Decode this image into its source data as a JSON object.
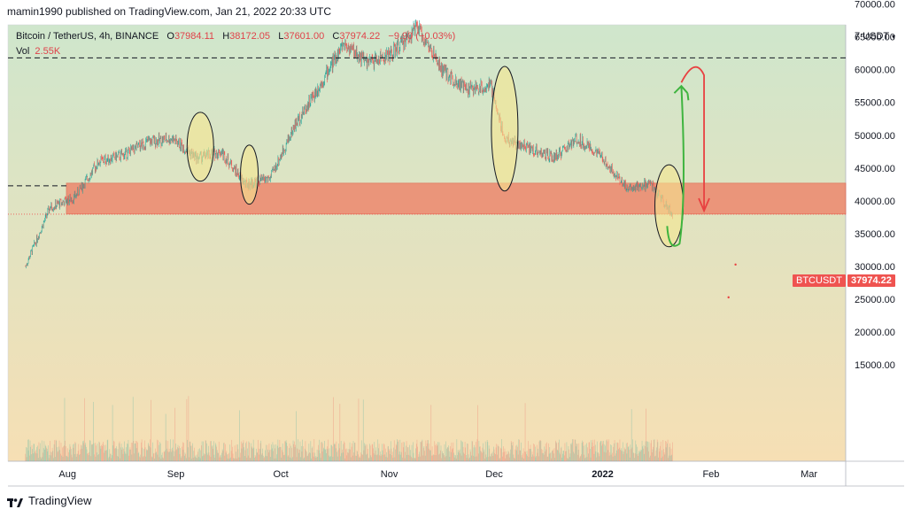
{
  "header": {
    "published": "mamin1990 published on TradingView.com, Jan 21, 2022 20:33 UTC"
  },
  "legend": {
    "symbol": "Bitcoin / TetherUS, 4h, BINANCE",
    "o_label": "O",
    "o_value": "37984.11",
    "h_label": "H",
    "h_value": "38172.05",
    "l_label": "L",
    "l_value": "37601.00",
    "c_label": "C",
    "c_value": "37974.22",
    "change": "−9.90 (−0.03%)",
    "vol_label": "Vol",
    "vol_value": "2.55K"
  },
  "price_axis": {
    "unit": "7 USDT",
    "currency_icon": "dropdown-icon"
  },
  "badges": {
    "symbol_badge": "BTCUSDT",
    "price_badge": "37974.22"
  },
  "footer": {
    "brand": "TradingView"
  },
  "colors": {
    "up": "#26a69a",
    "down": "#ef5350",
    "zone": "#ef7b62",
    "bg_top": "#cfe6cc",
    "bg_bottom": "#f5e0b6"
  },
  "chart_data": {
    "type": "candlestick",
    "interval": "4h",
    "ylim": [
      10000,
      75000
    ],
    "y_ticks": [
      "70000.00",
      "65000.00",
      "60000.00",
      "55000.00",
      "50000.00",
      "45000.00",
      "40000.00",
      "35000.00",
      "30000.00",
      "25000.00",
      "20000.00",
      "15000.00"
    ],
    "x_ticks": [
      "Aug",
      "Sep",
      "Oct",
      "Nov",
      "Dec",
      "2022",
      "Feb",
      "Mar"
    ],
    "series": [
      {
        "name": "price",
        "x": [
          "2021-07-20",
          "2021-07-27",
          "2021-08-03",
          "2021-08-10",
          "2021-08-17",
          "2021-08-24",
          "2021-08-31",
          "2021-09-07",
          "2021-09-14",
          "2021-09-21",
          "2021-09-28",
          "2021-10-05",
          "2021-10-12",
          "2021-10-19",
          "2021-10-26",
          "2021-11-02",
          "2021-11-09",
          "2021-11-16",
          "2021-11-23",
          "2021-11-30",
          "2021-12-04",
          "2021-12-11",
          "2021-12-18",
          "2021-12-25",
          "2022-01-01",
          "2022-01-08",
          "2022-01-15",
          "2022-01-21"
        ],
        "values": [
          30000,
          39000,
          40500,
          46000,
          47000,
          49000,
          49500,
          46500,
          47500,
          42500,
          43500,
          51500,
          57500,
          64000,
          61000,
          62500,
          66500,
          60000,
          57000,
          57500,
          49500,
          48000,
          46500,
          49500,
          46500,
          42000,
          42500,
          37974
        ]
      }
    ],
    "annotations": {
      "resistance_line": 61800,
      "support_line": 42300,
      "zone": [
        38000,
        42700
      ]
    }
  }
}
